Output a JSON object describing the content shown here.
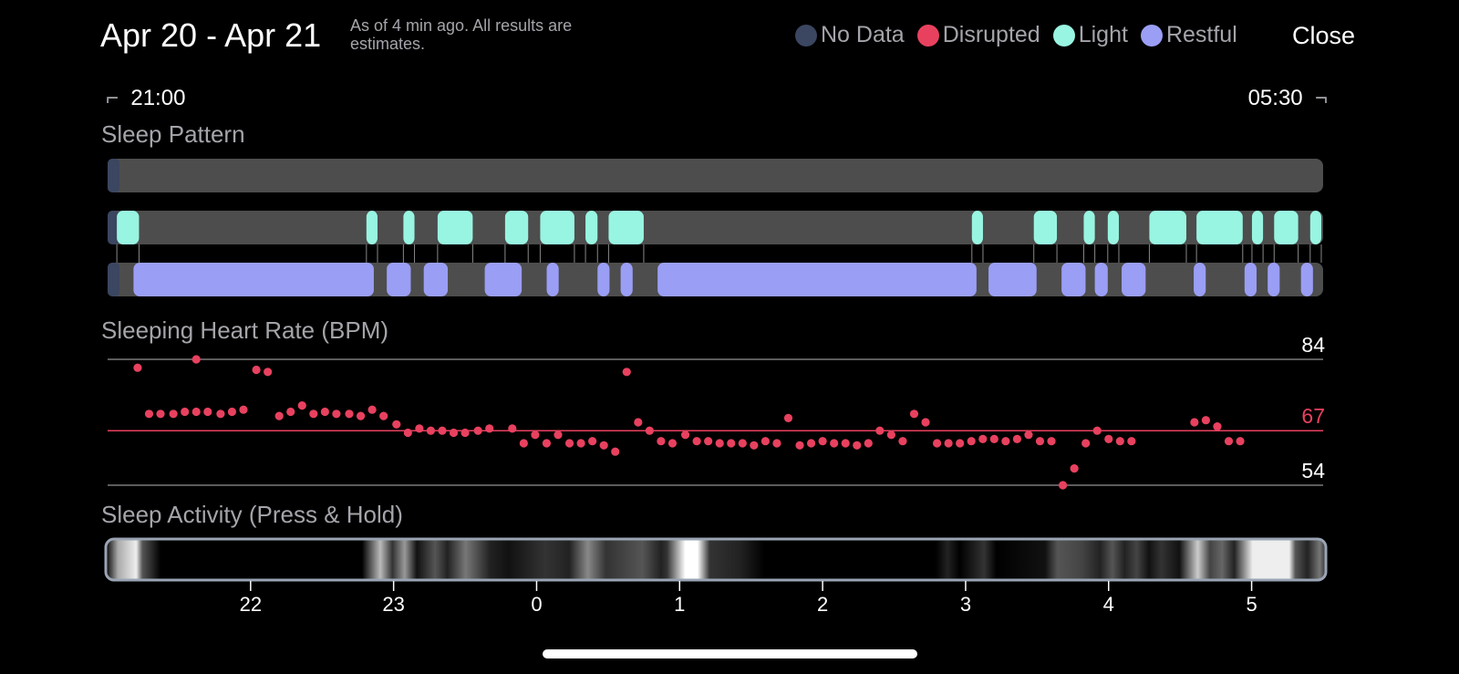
{
  "header": {
    "title": "Apr 20 - Apr 21",
    "note": "As of 4 min ago. All results are estimates.",
    "close_label": "Close"
  },
  "legend": [
    {
      "label": "No Data",
      "color": "#3b4660"
    },
    {
      "label": "Disrupted",
      "color": "#e8415f"
    },
    {
      "label": "Light",
      "color": "#98f5e1"
    },
    {
      "label": "Restful",
      "color": "#9a9ef5"
    }
  ],
  "time_range": {
    "start": "21:00",
    "end": "05:30"
  },
  "colors": {
    "track": "#4d4d4d",
    "light": "#98f5e1",
    "restful": "#9a9ef5",
    "no_data": "#3b4660",
    "heart_dot": "#e8415f",
    "avg_line": "#e8415f",
    "ref_line": "#7a7a7a"
  },
  "sleep_pattern": {
    "title": "Sleep Pattern",
    "time_axis_hours": [
      0,
      8.5
    ],
    "rows": {
      "disrupted": [],
      "light": [
        [
          0.1,
          0.34
        ],
        [
          2.8,
          2.92
        ],
        [
          3.2,
          3.32
        ],
        [
          3.57,
          3.95
        ],
        [
          4.3,
          4.55
        ],
        [
          4.68,
          5.05
        ],
        [
          5.17,
          5.3
        ],
        [
          5.42,
          5.8
        ],
        [
          9.35,
          9.47
        ],
        [
          10.02,
          10.27
        ],
        [
          10.56,
          10.68
        ],
        [
          10.82,
          10.94
        ],
        [
          11.27,
          11.67
        ],
        [
          11.78,
          12.28
        ],
        [
          12.38,
          12.5
        ],
        [
          12.62,
          12.88
        ],
        [
          13.01,
          13.13
        ]
      ],
      "restful": [
        [
          0.28,
          2.88
        ],
        [
          3.02,
          3.28
        ],
        [
          3.42,
          3.68
        ],
        [
          4.08,
          4.48
        ],
        [
          4.75,
          4.88
        ],
        [
          5.3,
          5.43
        ],
        [
          5.55,
          5.68
        ],
        [
          5.95,
          9.4
        ],
        [
          9.53,
          10.05
        ],
        [
          10.32,
          10.58
        ],
        [
          10.68,
          10.82
        ],
        [
          10.97,
          11.23
        ],
        [
          11.75,
          11.88
        ],
        [
          12.3,
          12.43
        ],
        [
          12.55,
          12.68
        ],
        [
          12.91,
          13.04
        ]
      ]
    },
    "no_data_leading": true
  },
  "heart_rate": {
    "title": "Sleeping Heart Rate (BPM)",
    "max_label": "84",
    "avg_label": "67",
    "min_label": "54",
    "max": 84,
    "avg": 67,
    "min": 54
  },
  "sleep_activity": {
    "title": "Sleep Activity (Press & Hold)"
  },
  "chart_data": {
    "type": "scatter",
    "title": "Sleeping Heart Rate (BPM)",
    "xlabel": "",
    "ylabel": "",
    "x_unit": "hour of night",
    "xlim": [
      21,
      29.5
    ],
    "ylim": [
      54,
      84
    ],
    "x_ticks": [
      "22",
      "23",
      "0",
      "1",
      "2",
      "3",
      "4",
      "5"
    ],
    "reference_lines": [
      84,
      67,
      54
    ],
    "series": [
      {
        "points": [
          [
            21.21,
            82
          ],
          [
            21.29,
            71
          ],
          [
            21.37,
            71
          ],
          [
            21.46,
            71
          ],
          [
            21.62,
            84
          ],
          [
            21.54,
            71.5
          ],
          [
            21.62,
            71.5
          ],
          [
            21.7,
            71.5
          ],
          [
            21.79,
            71
          ],
          [
            21.87,
            71.5
          ],
          [
            21.95,
            72
          ],
          [
            22.04,
            81.5
          ],
          [
            22.12,
            81
          ],
          [
            22.2,
            70.5
          ],
          [
            22.28,
            71.5
          ],
          [
            22.36,
            73
          ],
          [
            22.44,
            71
          ],
          [
            22.52,
            71.5
          ],
          [
            22.6,
            71
          ],
          [
            22.69,
            71
          ],
          [
            22.77,
            70.5
          ],
          [
            22.85,
            72
          ],
          [
            22.93,
            70.5
          ],
          [
            23.02,
            68.5
          ],
          [
            23.1,
            66.5
          ],
          [
            23.18,
            67.5
          ],
          [
            23.26,
            67
          ],
          [
            23.34,
            67
          ],
          [
            23.42,
            66.5
          ],
          [
            23.5,
            66.5
          ],
          [
            23.59,
            67
          ],
          [
            23.67,
            67.5
          ],
          [
            23.83,
            67.5
          ],
          [
            23.91,
            64
          ],
          [
            23.99,
            66
          ],
          [
            24.07,
            64
          ],
          [
            24.15,
            66
          ],
          [
            24.23,
            64
          ],
          [
            24.31,
            64
          ],
          [
            24.39,
            64.5
          ],
          [
            24.47,
            63.5
          ],
          [
            24.55,
            62
          ],
          [
            24.63,
            81
          ],
          [
            24.71,
            69
          ],
          [
            24.79,
            67
          ],
          [
            24.87,
            64.5
          ],
          [
            24.95,
            64
          ],
          [
            25.04,
            66
          ],
          [
            25.12,
            64.5
          ],
          [
            25.2,
            64.5
          ],
          [
            25.28,
            64
          ],
          [
            25.36,
            64
          ],
          [
            25.44,
            64
          ],
          [
            25.52,
            63.5
          ],
          [
            25.6,
            64.5
          ],
          [
            25.68,
            64
          ],
          [
            25.76,
            70
          ],
          [
            25.84,
            63.5
          ],
          [
            25.92,
            64
          ],
          [
            26.0,
            64.5
          ],
          [
            26.08,
            64
          ],
          [
            26.16,
            64
          ],
          [
            26.24,
            63.5
          ],
          [
            26.32,
            64
          ],
          [
            26.4,
            67
          ],
          [
            26.48,
            66
          ],
          [
            26.56,
            64.5
          ],
          [
            26.64,
            71
          ],
          [
            26.72,
            69
          ],
          [
            26.8,
            64
          ],
          [
            26.88,
            64
          ],
          [
            26.96,
            64
          ],
          [
            27.04,
            64.5
          ],
          [
            27.12,
            65
          ],
          [
            27.2,
            65
          ],
          [
            27.28,
            64.5
          ],
          [
            27.36,
            65
          ],
          [
            27.44,
            66
          ],
          [
            27.52,
            64.5
          ],
          [
            27.6,
            64.5
          ],
          [
            27.68,
            54
          ],
          [
            27.76,
            58
          ],
          [
            27.84,
            64
          ],
          [
            27.92,
            67
          ],
          [
            28.0,
            65
          ],
          [
            28.08,
            64.5
          ],
          [
            28.16,
            64.5
          ],
          [
            28.6,
            69
          ],
          [
            28.68,
            69.5
          ],
          [
            28.76,
            68
          ],
          [
            28.84,
            64.5
          ],
          [
            28.92,
            64.5
          ]
        ]
      }
    ]
  }
}
